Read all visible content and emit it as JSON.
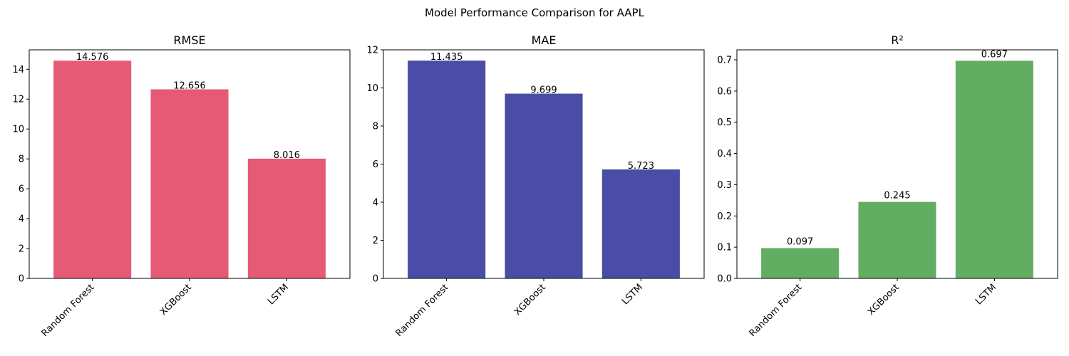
{
  "figure": {
    "title": "Model Performance Comparison for AAPL"
  },
  "chart_data": [
    {
      "type": "bar",
      "title": "RMSE",
      "xlabel": "",
      "ylabel": "",
      "categories": [
        "Random Forest",
        "XGBoost",
        "LSTM"
      ],
      "values": [
        14.576,
        12.656,
        8.016
      ],
      "labels": [
        "14.576",
        "12.656",
        "8.016"
      ],
      "ylim": [
        0,
        15.3
      ],
      "yticks": [
        0,
        2,
        4,
        6,
        8,
        10,
        12,
        14
      ],
      "ytick_labels": [
        "0",
        "2",
        "4",
        "6",
        "8",
        "10",
        "12",
        "14"
      ],
      "color": "#e55b76",
      "grid": false,
      "label_offset": 1
    },
    {
      "type": "bar",
      "title": "MAE",
      "xlabel": "",
      "ylabel": "",
      "categories": [
        "Random Forest",
        "XGBoost",
        "LSTM"
      ],
      "values": [
        11.435,
        9.699,
        5.723
      ],
      "labels": [
        "11.435",
        "9.699",
        "5.723"
      ],
      "ylim": [
        0,
        12
      ],
      "yticks": [
        0,
        2,
        4,
        6,
        8,
        10,
        12
      ],
      "ytick_labels": [
        "0",
        "2",
        "4",
        "6",
        "8",
        "10",
        "12"
      ],
      "color": "#4b4ca5",
      "grid": false,
      "label_offset": 1
    },
    {
      "type": "bar",
      "title": "R²",
      "xlabel": "",
      "ylabel": "",
      "categories": [
        "Random Forest",
        "XGBoost",
        "LSTM"
      ],
      "values": [
        0.097,
        0.245,
        0.697
      ],
      "labels": [
        "0.097",
        "0.245",
        "0.697"
      ],
      "ylim": [
        0,
        0.732
      ],
      "yticks": [
        0.0,
        0.1,
        0.2,
        0.3,
        0.4,
        0.5,
        0.6,
        0.7
      ],
      "ytick_labels": [
        "0.0",
        "0.1",
        "0.2",
        "0.3",
        "0.4",
        "0.5",
        "0.6",
        "0.7"
      ],
      "color": "#63ad63",
      "grid": false,
      "label_offset": 5
    }
  ]
}
